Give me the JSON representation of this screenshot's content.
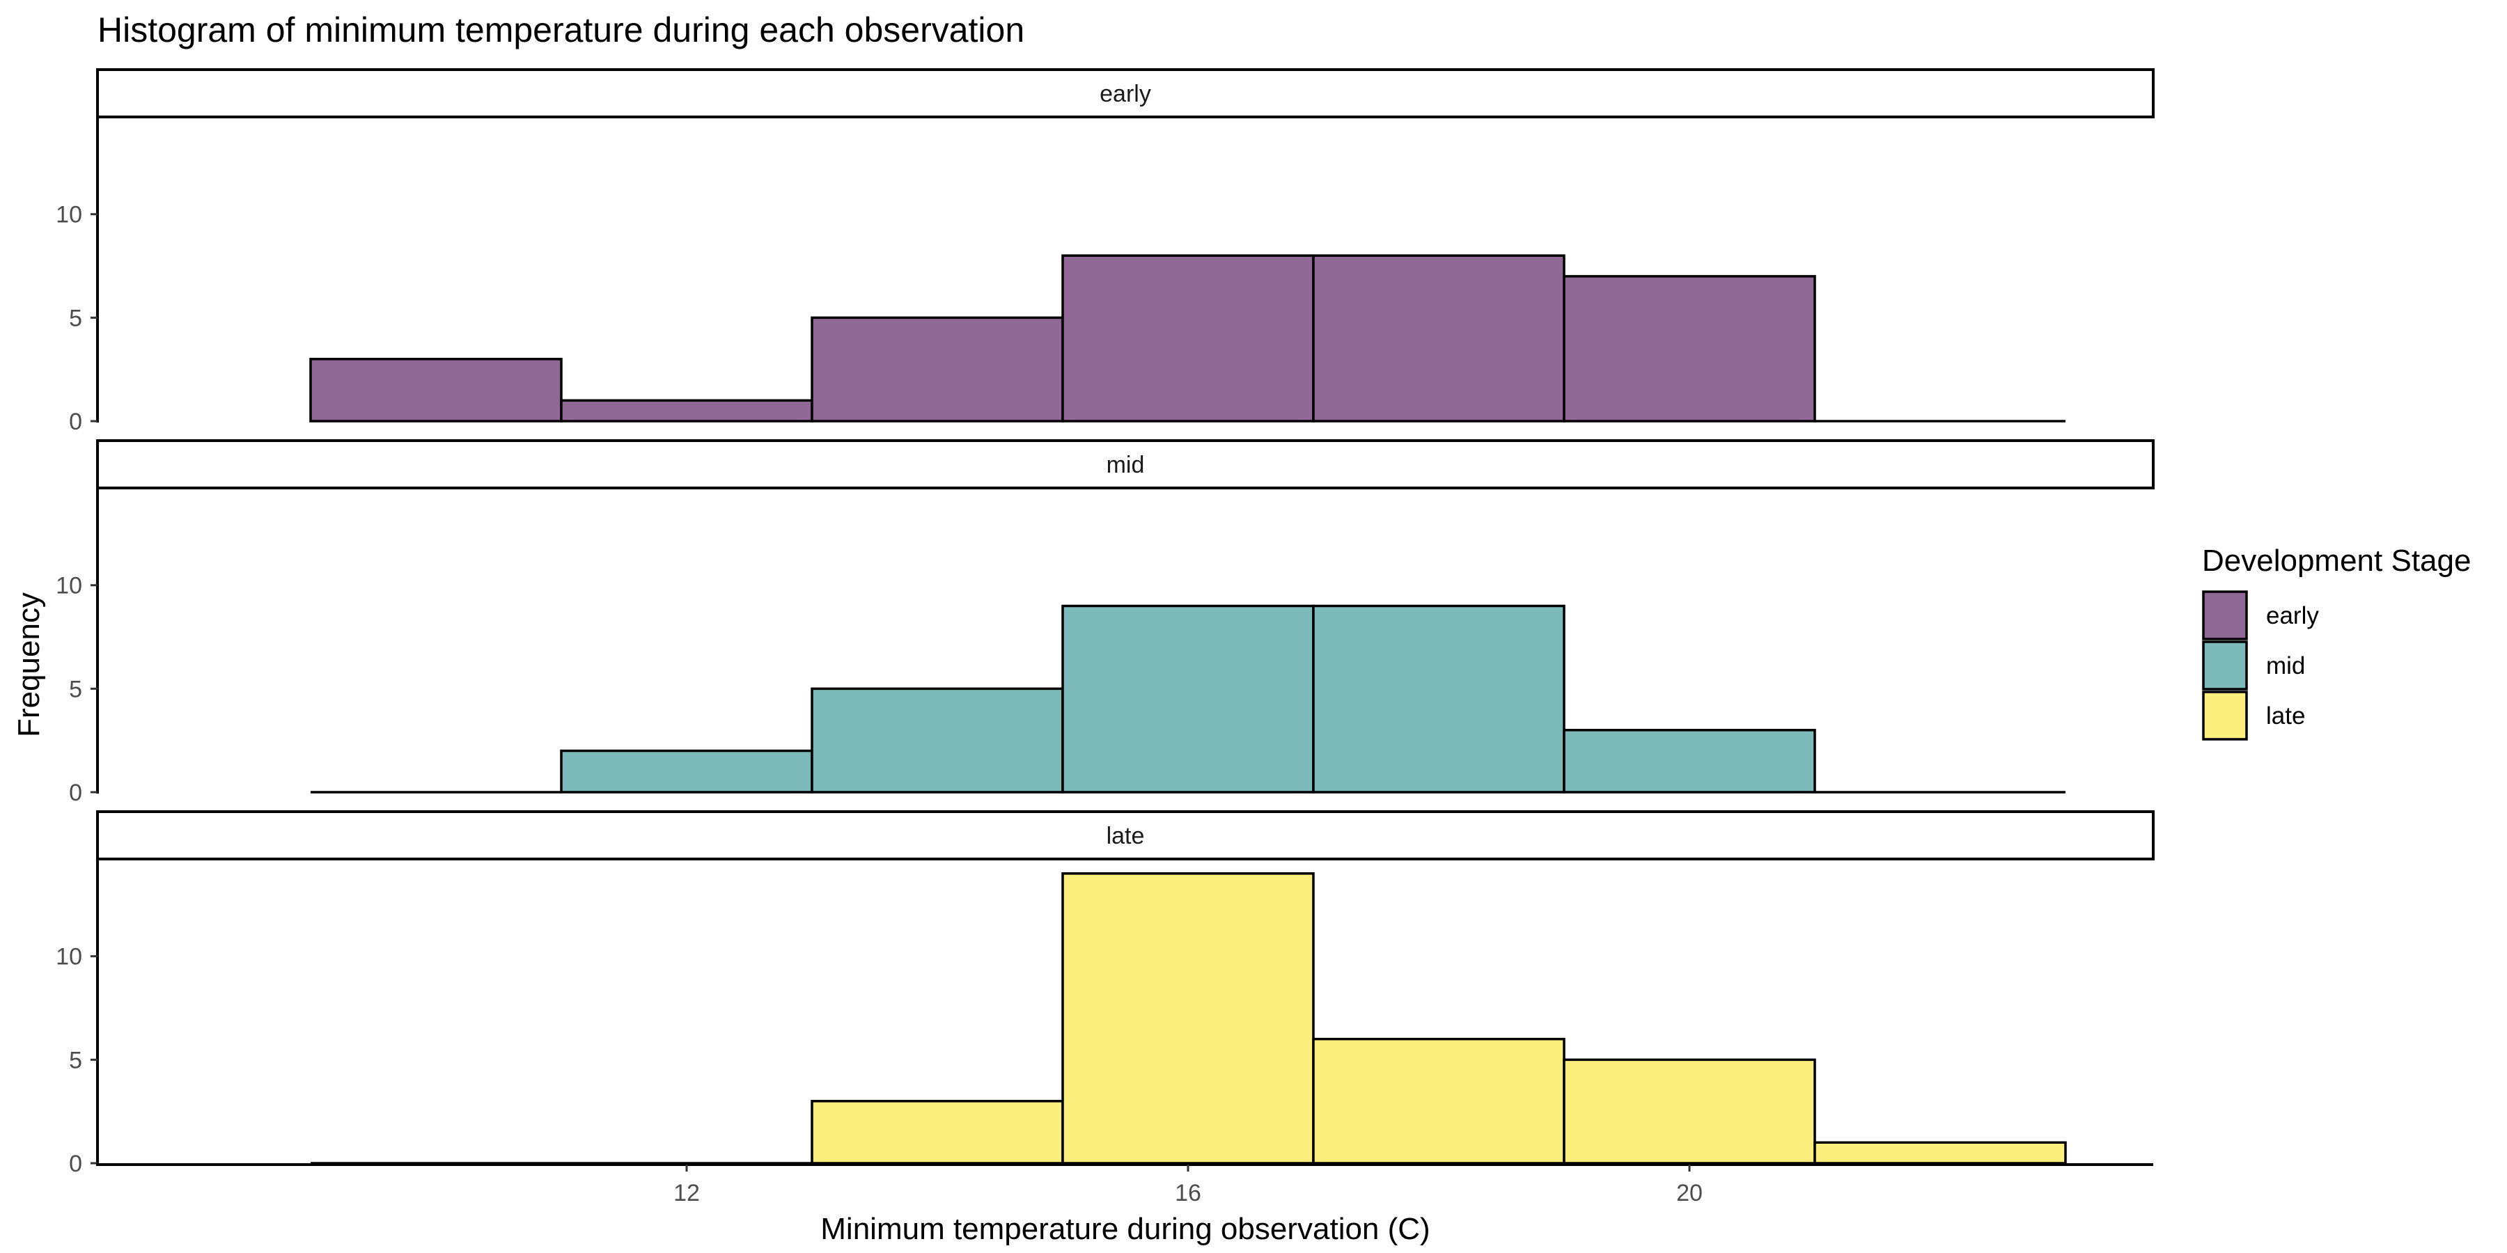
{
  "chart_data": {
    "type": "bar",
    "title": "Histogram of minimum temperature during each observation",
    "xlabel": "Minimum temperature during observation (C)",
    "ylabel": "Frequency",
    "xlim": [
      7.3,
      23.7
    ],
    "ylim": [
      0,
      14.7
    ],
    "x_ticks": [
      12,
      16,
      20
    ],
    "y_ticks": [
      0,
      5,
      10
    ],
    "bin_edges": [
      9,
      11,
      13,
      15,
      17,
      19,
      21,
      23
    ],
    "grid": false,
    "legend": {
      "title": "Development Stage",
      "position": "right",
      "entries": [
        "early",
        "mid",
        "late"
      ]
    },
    "series": [
      {
        "name": "early",
        "color": "#8F6896",
        "values": [
          3,
          1,
          5,
          8,
          8,
          7,
          0
        ]
      },
      {
        "name": "mid",
        "color": "#7BBAB8",
        "values": [
          0,
          2,
          5,
          9,
          9,
          3,
          0
        ]
      },
      {
        "name": "late",
        "color": "#FDEF7E",
        "values": [
          0,
          0,
          3,
          14,
          6,
          5,
          1
        ]
      }
    ]
  }
}
